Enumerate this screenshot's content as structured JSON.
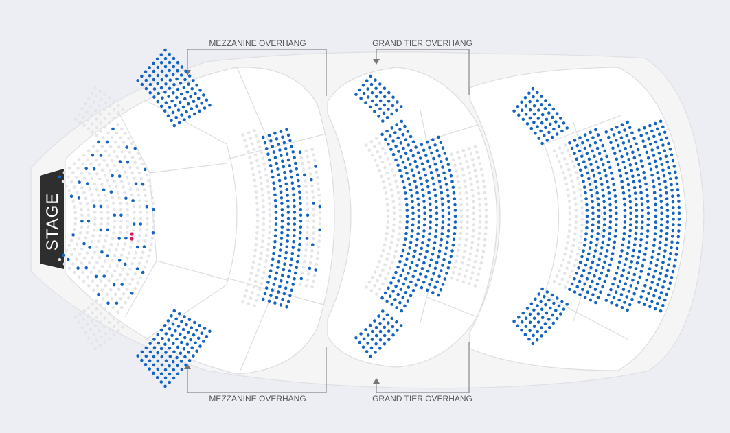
{
  "stage": {
    "label": "STAGE"
  },
  "overhang_labels": {
    "mezzanine_top": "MEZZANINE OVERHANG",
    "mezzanine_bottom": "MEZZANINE OVERHANG",
    "grand_tier_top": "GRAND TIER OVERHANG",
    "grand_tier_bottom": "GRAND TIER OVERHANG"
  },
  "legend_colors": {
    "available": "#1565c0",
    "unavailable": "#e4e5e8",
    "accessible": "#d81b60",
    "stage": "#2e2e2e"
  }
}
